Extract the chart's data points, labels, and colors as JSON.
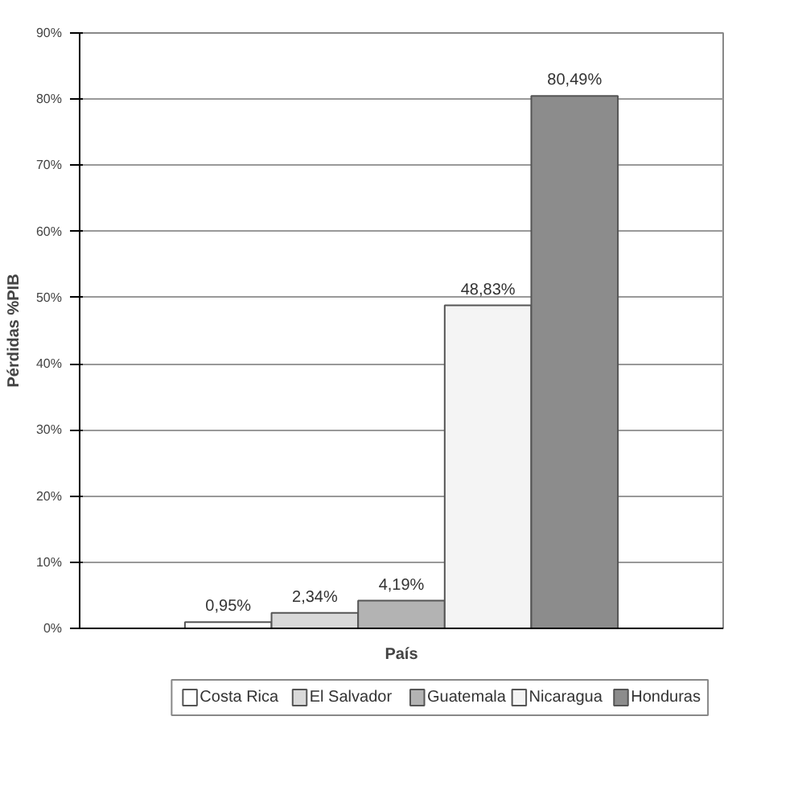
{
  "chart_data": {
    "type": "bar",
    "xlabel": "País",
    "ylabel": "Pérdidas %PIB",
    "categories": [
      null
    ],
    "series": [
      {
        "name": "Costa Rica",
        "color": "#ffffff",
        "values": [
          0.95
        ],
        "value_labels": [
          "0,95%"
        ]
      },
      {
        "name": "El Salvador",
        "color": "#d9d9d9",
        "values": [
          2.34
        ],
        "value_labels": [
          "2,34%"
        ]
      },
      {
        "name": "Guatemala",
        "color": "#b3b3b3",
        "values": [
          4.19
        ],
        "value_labels": [
          "4,19%"
        ]
      },
      {
        "name": "Nicaragua",
        "color": "#f4f4f4",
        "values": [
          48.83
        ],
        "value_labels": [
          "48,83%"
        ]
      },
      {
        "name": "Honduras",
        "color": "#8c8c8c",
        "values": [
          80.49
        ],
        "value_labels": [
          "80,49%"
        ]
      }
    ],
    "ylim": [
      0,
      90
    ],
    "yticks": [
      {
        "value": 0,
        "label": "0%"
      },
      {
        "value": 10,
        "label": "10%"
      },
      {
        "value": 20,
        "label": "20%"
      },
      {
        "value": 30,
        "label": "30%"
      },
      {
        "value": 40,
        "label": "40%"
      },
      {
        "value": 50,
        "label": "50%"
      },
      {
        "value": 60,
        "label": "60%"
      },
      {
        "value": 70,
        "label": "70%"
      },
      {
        "value": 80,
        "label": "80%"
      },
      {
        "value": 90,
        "label": "90%"
      }
    ],
    "grid": "y",
    "legend": "bottom"
  }
}
